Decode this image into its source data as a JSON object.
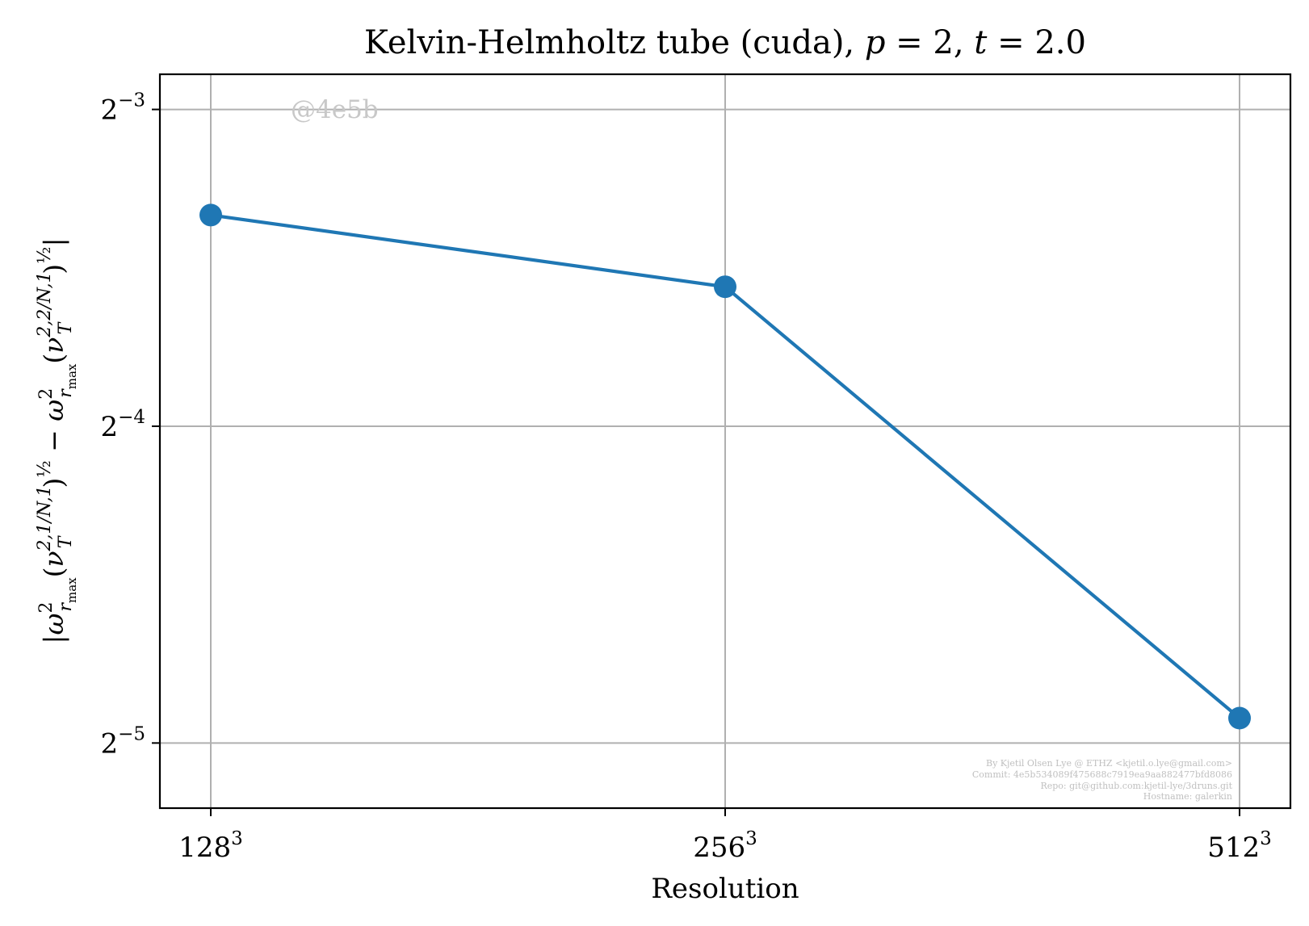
{
  "chart_data": {
    "type": "line",
    "title": "Kelvin-Helmholtz tube (cuda), p = 2, t = 2.0",
    "title_parts": {
      "prefix": "Kelvin-Helmholtz tube (cuda), ",
      "p": "p",
      "p_val": " = 2, ",
      "t": "t",
      "t_val": " = 2.0"
    },
    "xlabel": "Resolution",
    "ylabel": "|ω²r_max(ν_T^{2,1/N,1})^(1/2) − ω²r_max(ν_T^{2,2/N,1})^(1/2)|",
    "ylabel_parts": {
      "bar": "|",
      "omega": "ω",
      "two": "2",
      "r": "r",
      "max": "max",
      "open": "(",
      "nu": "ν",
      "T": "T",
      "sup1": "2,1/N,1",
      "close": ")",
      "half": "½",
      "minus": " − ",
      "sup2": "2,2/N,1"
    },
    "x_scale": "categorical",
    "y_scale": "log2",
    "categories": [
      "128",
      "256",
      "512"
    ],
    "category_exponent": "3",
    "y_ticks": [
      {
        "base": "2",
        "exp": "−5",
        "value": 0.03125
      },
      {
        "base": "2",
        "exp": "−4",
        "value": 0.0625
      },
      {
        "base": "2",
        "exp": "−3",
        "value": 0.125
      }
    ],
    "ylim": [
      0.0271,
      0.135
    ],
    "grid": true,
    "series": [
      {
        "values": [
          0.0992,
          0.0848,
          0.033
        ],
        "color": "#1f77b4",
        "marker": "circle"
      }
    ],
    "watermark": "@4e5b",
    "footer_lines": [
      "By Kjetil Olsen Lye @ ETHZ <kjetil.o.lye@gmail.com>",
      "Commit: 4e5b534089f475688c7919ea9aa882477bfd8086",
      "Repo: git@github.com:kjetil-lye/3druns.git",
      "Hostname: galerkin"
    ]
  }
}
